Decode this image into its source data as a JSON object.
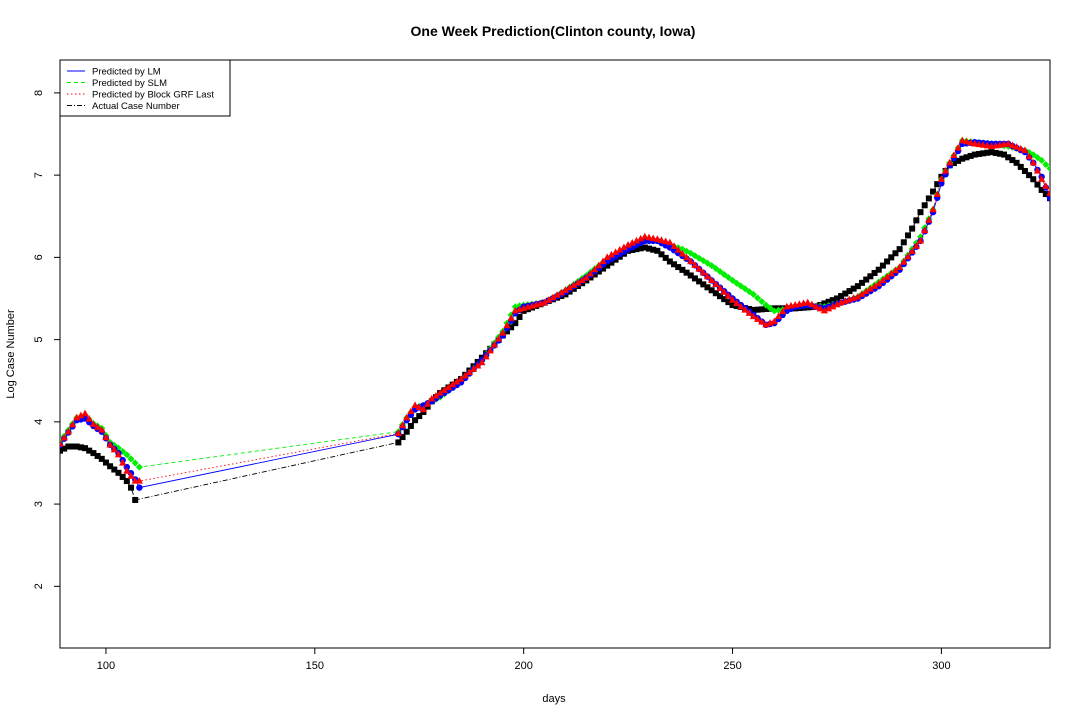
{
  "chart_data": {
    "type": "line",
    "title": "One Week Prediction(Clinton county, Iowa)",
    "xlabel": "days",
    "ylabel": "Log Case Number",
    "xlim": [
      89,
      326
    ],
    "ylim": [
      1.25,
      8.4
    ],
    "xticks": [
      100,
      150,
      200,
      250,
      300
    ],
    "yticks": [
      2,
      3,
      4,
      5,
      6,
      7,
      8
    ],
    "grid": false,
    "legend_position": "top-left",
    "series": [
      {
        "name": "Predicted by LM",
        "color": "#0000ff",
        "line_style": "solid",
        "marker": "circle",
        "points": [
          [
            89,
            3.72
          ],
          [
            91,
            3.87
          ],
          [
            93,
            4.02
          ],
          [
            95,
            4.04
          ],
          [
            97,
            3.95
          ],
          [
            99,
            3.88
          ],
          [
            101,
            3.72
          ],
          [
            103,
            3.62
          ],
          [
            105,
            3.45
          ],
          [
            107,
            3.3
          ],
          [
            108,
            3.2
          ],
          [
            170,
            3.85
          ],
          [
            172,
            4.02
          ],
          [
            174,
            4.15
          ],
          [
            176,
            4.2
          ],
          [
            178,
            4.25
          ],
          [
            180,
            4.32
          ],
          [
            185,
            4.48
          ],
          [
            190,
            4.75
          ],
          [
            195,
            5.05
          ],
          [
            198,
            5.32
          ],
          [
            200,
            5.4
          ],
          [
            205,
            5.45
          ],
          [
            210,
            5.58
          ],
          [
            215,
            5.75
          ],
          [
            220,
            5.95
          ],
          [
            225,
            6.1
          ],
          [
            229,
            6.2
          ],
          [
            232,
            6.2
          ],
          [
            235,
            6.12
          ],
          [
            240,
            5.95
          ],
          [
            245,
            5.72
          ],
          [
            250,
            5.5
          ],
          [
            255,
            5.3
          ],
          [
            258,
            5.18
          ],
          [
            260,
            5.2
          ],
          [
            263,
            5.35
          ],
          [
            265,
            5.4
          ],
          [
            268,
            5.42
          ],
          [
            272,
            5.38
          ],
          [
            276,
            5.45
          ],
          [
            280,
            5.5
          ],
          [
            285,
            5.65
          ],
          [
            290,
            5.85
          ],
          [
            295,
            6.2
          ],
          [
            298,
            6.55
          ],
          [
            300,
            6.9
          ],
          [
            302,
            7.12
          ],
          [
            305,
            7.38
          ],
          [
            308,
            7.4
          ],
          [
            312,
            7.38
          ],
          [
            316,
            7.38
          ],
          [
            320,
            7.28
          ],
          [
            322,
            7.15
          ],
          [
            324,
            6.98
          ],
          [
            326,
            6.72
          ]
        ]
      },
      {
        "name": "Predicted by SLM",
        "color": "#00ee00",
        "line_style": "dashed",
        "marker": "diamond",
        "points": [
          [
            89,
            3.75
          ],
          [
            91,
            3.9
          ],
          [
            93,
            4.05
          ],
          [
            95,
            4.08
          ],
          [
            97,
            3.98
          ],
          [
            99,
            3.92
          ],
          [
            101,
            3.75
          ],
          [
            103,
            3.68
          ],
          [
            105,
            3.6
          ],
          [
            107,
            3.5
          ],
          [
            108,
            3.45
          ],
          [
            170,
            3.88
          ],
          [
            172,
            4.05
          ],
          [
            174,
            4.18
          ],
          [
            176,
            4.2
          ],
          [
            178,
            4.25
          ],
          [
            180,
            4.3
          ],
          [
            185,
            4.5
          ],
          [
            190,
            4.75
          ],
          [
            195,
            5.1
          ],
          [
            198,
            5.4
          ],
          [
            200,
            5.42
          ],
          [
            205,
            5.45
          ],
          [
            210,
            5.6
          ],
          [
            215,
            5.78
          ],
          [
            220,
            5.98
          ],
          [
            225,
            6.12
          ],
          [
            229,
            6.22
          ],
          [
            232,
            6.2
          ],
          [
            235,
            6.15
          ],
          [
            238,
            6.1
          ],
          [
            240,
            6.05
          ],
          [
            245,
            5.9
          ],
          [
            250,
            5.72
          ],
          [
            255,
            5.55
          ],
          [
            258,
            5.42
          ],
          [
            260,
            5.35
          ],
          [
            263,
            5.37
          ],
          [
            265,
            5.4
          ],
          [
            268,
            5.42
          ],
          [
            272,
            5.4
          ],
          [
            276,
            5.45
          ],
          [
            280,
            5.52
          ],
          [
            285,
            5.7
          ],
          [
            290,
            5.88
          ],
          [
            295,
            6.25
          ],
          [
            298,
            6.58
          ],
          [
            300,
            6.95
          ],
          [
            302,
            7.15
          ],
          [
            305,
            7.42
          ],
          [
            308,
            7.4
          ],
          [
            312,
            7.38
          ],
          [
            316,
            7.35
          ],
          [
            320,
            7.3
          ],
          [
            322,
            7.25
          ],
          [
            324,
            7.18
          ],
          [
            326,
            7.08
          ]
        ]
      },
      {
        "name": "Predicted by Block GRF Last",
        "color": "#ff0000",
        "line_style": "dotted",
        "marker": "triangle",
        "points": [
          [
            89,
            3.73
          ],
          [
            91,
            3.88
          ],
          [
            93,
            4.05
          ],
          [
            95,
            4.1
          ],
          [
            97,
            3.97
          ],
          [
            99,
            3.9
          ],
          [
            101,
            3.72
          ],
          [
            103,
            3.6
          ],
          [
            105,
            3.4
          ],
          [
            107,
            3.28
          ],
          [
            108,
            3.28
          ],
          [
            170,
            3.86
          ],
          [
            172,
            4.05
          ],
          [
            174,
            4.2
          ],
          [
            176,
            4.15
          ],
          [
            178,
            4.28
          ],
          [
            180,
            4.35
          ],
          [
            185,
            4.52
          ],
          [
            190,
            4.72
          ],
          [
            195,
            5.08
          ],
          [
            198,
            5.35
          ],
          [
            200,
            5.38
          ],
          [
            205,
            5.45
          ],
          [
            210,
            5.6
          ],
          [
            215,
            5.75
          ],
          [
            220,
            6.0
          ],
          [
            225,
            6.15
          ],
          [
            229,
            6.25
          ],
          [
            232,
            6.22
          ],
          [
            235,
            6.18
          ],
          [
            240,
            5.95
          ],
          [
            245,
            5.72
          ],
          [
            250,
            5.48
          ],
          [
            255,
            5.28
          ],
          [
            258,
            5.18
          ],
          [
            260,
            5.22
          ],
          [
            263,
            5.4
          ],
          [
            265,
            5.42
          ],
          [
            268,
            5.45
          ],
          [
            272,
            5.35
          ],
          [
            276,
            5.45
          ],
          [
            280,
            5.52
          ],
          [
            285,
            5.68
          ],
          [
            290,
            5.88
          ],
          [
            295,
            6.2
          ],
          [
            298,
            6.58
          ],
          [
            300,
            6.95
          ],
          [
            302,
            7.15
          ],
          [
            305,
            7.42
          ],
          [
            308,
            7.38
          ],
          [
            312,
            7.35
          ],
          [
            316,
            7.38
          ],
          [
            320,
            7.3
          ],
          [
            322,
            7.15
          ],
          [
            324,
            6.95
          ],
          [
            326,
            6.78
          ]
        ]
      },
      {
        "name": "Actual Case Number",
        "color": "#000000",
        "line_style": "dashdot",
        "marker": "square",
        "points": [
          [
            89,
            3.65
          ],
          [
            91,
            3.7
          ],
          [
            93,
            3.7
          ],
          [
            95,
            3.68
          ],
          [
            97,
            3.62
          ],
          [
            99,
            3.55
          ],
          [
            101,
            3.46
          ],
          [
            103,
            3.38
          ],
          [
            105,
            3.28
          ],
          [
            106,
            3.2
          ],
          [
            107,
            3.05
          ],
          [
            170,
            3.75
          ],
          [
            172,
            3.88
          ],
          [
            174,
            4.02
          ],
          [
            176,
            4.12
          ],
          [
            178,
            4.25
          ],
          [
            180,
            4.35
          ],
          [
            185,
            4.52
          ],
          [
            190,
            4.78
          ],
          [
            195,
            5.05
          ],
          [
            198,
            5.2
          ],
          [
            200,
            5.35
          ],
          [
            205,
            5.45
          ],
          [
            210,
            5.55
          ],
          [
            215,
            5.72
          ],
          [
            220,
            5.9
          ],
          [
            225,
            6.08
          ],
          [
            229,
            6.12
          ],
          [
            232,
            6.08
          ],
          [
            235,
            5.95
          ],
          [
            240,
            5.78
          ],
          [
            245,
            5.6
          ],
          [
            250,
            5.42
          ],
          [
            255,
            5.36
          ],
          [
            260,
            5.38
          ],
          [
            265,
            5.38
          ],
          [
            270,
            5.4
          ],
          [
            275,
            5.5
          ],
          [
            280,
            5.65
          ],
          [
            285,
            5.85
          ],
          [
            290,
            6.1
          ],
          [
            293,
            6.35
          ],
          [
            295,
            6.55
          ],
          [
            298,
            6.8
          ],
          [
            300,
            6.98
          ],
          [
            302,
            7.12
          ],
          [
            305,
            7.2
          ],
          [
            308,
            7.25
          ],
          [
            312,
            7.28
          ],
          [
            315,
            7.25
          ],
          [
            318,
            7.15
          ],
          [
            320,
            7.05
          ],
          [
            322,
            6.95
          ],
          [
            324,
            6.82
          ],
          [
            326,
            6.72
          ]
        ]
      }
    ]
  }
}
